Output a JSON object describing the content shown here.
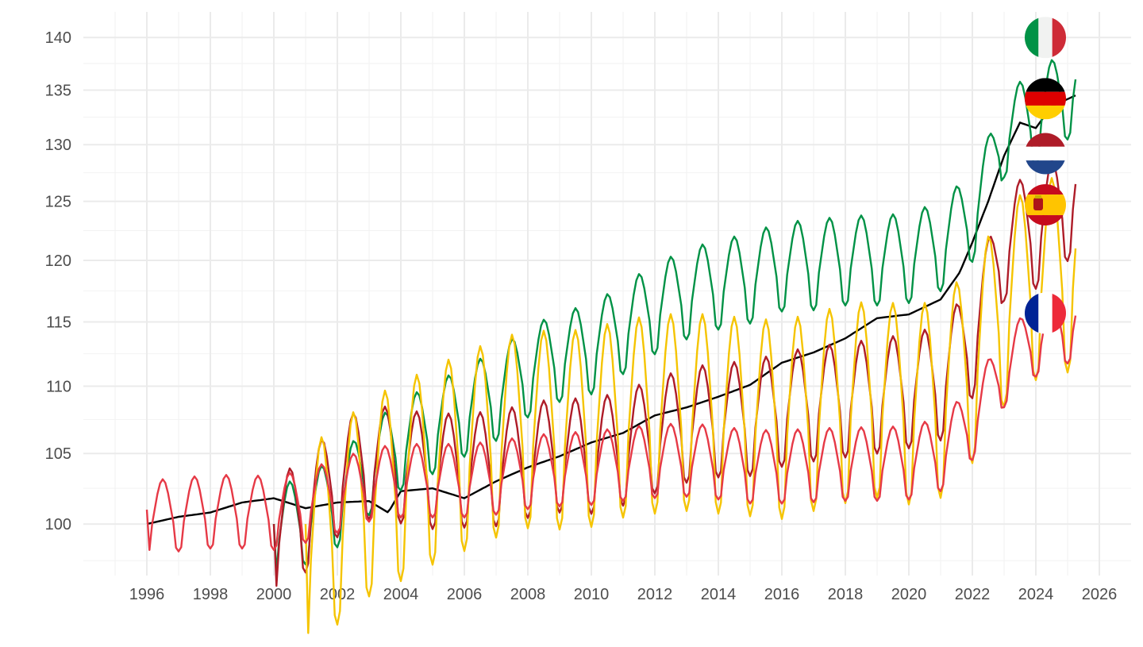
{
  "chart_data": {
    "type": "line",
    "title": "",
    "xlabel": "",
    "ylabel": "",
    "y_scale": "log",
    "ylim": [
      96.5,
      142.5
    ],
    "xlim": [
      1994.0,
      2027.0
    ],
    "grid": true,
    "legend": "none; country flags at series line ends (right)",
    "x_ticks": [
      1996,
      1998,
      2000,
      2002,
      2004,
      2006,
      2008,
      2010,
      2012,
      2014,
      2016,
      2018,
      2020,
      2022,
      2024,
      2026
    ],
    "x_tick_labels": [
      "1996",
      "1998",
      "2000",
      "2002",
      "2004",
      "2006",
      "2008",
      "2010",
      "2012",
      "2014",
      "2016",
      "2018",
      "2020",
      "2022",
      "2024",
      "2026"
    ],
    "y_ticks": [
      100,
      105,
      110,
      115,
      120,
      125,
      130,
      135,
      140
    ],
    "y_tick_labels": [
      "100",
      "105",
      "110",
      "115",
      "120",
      "125",
      "130",
      "135",
      "140"
    ],
    "series": [
      {
        "country": "Germany",
        "color": "#000000",
        "flag": "germany-flag",
        "start": 1996.0,
        "end": 2025.25,
        "seasonal_amp": 0.0,
        "anchors": [
          [
            1996.0,
            100.0
          ],
          [
            1997.0,
            100.5
          ],
          [
            1998.0,
            100.8
          ],
          [
            1999.0,
            101.5
          ],
          [
            2000.0,
            101.8
          ],
          [
            2001.0,
            101.1
          ],
          [
            2002.0,
            101.5
          ],
          [
            2003.0,
            101.6
          ],
          [
            2003.6,
            100.8
          ],
          [
            2004.0,
            102.3
          ],
          [
            2005.0,
            102.5
          ],
          [
            2006.0,
            101.8
          ],
          [
            2007.0,
            103.0
          ],
          [
            2008.0,
            104.0
          ],
          [
            2009.0,
            104.8
          ],
          [
            2010.0,
            105.8
          ],
          [
            2011.0,
            106.5
          ],
          [
            2012.0,
            107.8
          ],
          [
            2013.0,
            108.4
          ],
          [
            2014.0,
            109.2
          ],
          [
            2015.0,
            110.1
          ],
          [
            2016.0,
            111.8
          ],
          [
            2017.0,
            112.6
          ],
          [
            2018.0,
            113.7
          ],
          [
            2019.0,
            115.3
          ],
          [
            2020.0,
            115.6
          ],
          [
            2021.0,
            116.8
          ],
          [
            2021.6,
            119.0
          ],
          [
            2022.0,
            121.5
          ],
          [
            2022.5,
            125.0
          ],
          [
            2023.0,
            129.0
          ],
          [
            2023.5,
            132.0
          ],
          [
            2024.0,
            131.5
          ],
          [
            2024.5,
            133.5
          ],
          [
            2025.25,
            134.5
          ]
        ]
      },
      {
        "country": "Italy",
        "color": "#009246",
        "flag": "italy-flag",
        "start": 2000.0,
        "end": 2025.25,
        "seasonal_amp": 0.055,
        "anchors": [
          [
            2000.0,
            100.0
          ],
          [
            2001.0,
            101.0
          ],
          [
            2002.0,
            102.2
          ],
          [
            2003.0,
            104.5
          ],
          [
            2004.0,
            106.3
          ],
          [
            2005.0,
            107.5
          ],
          [
            2006.0,
            108.8
          ],
          [
            2007.0,
            110.0
          ],
          [
            2008.0,
            111.8
          ],
          [
            2009.0,
            113.0
          ],
          [
            2010.0,
            113.6
          ],
          [
            2011.0,
            115.2
          ],
          [
            2012.0,
            116.8
          ],
          [
            2013.0,
            118.0
          ],
          [
            2014.0,
            118.8
          ],
          [
            2015.0,
            119.3
          ],
          [
            2016.0,
            120.3
          ],
          [
            2017.0,
            120.4
          ],
          [
            2018.0,
            120.8
          ],
          [
            2019.0,
            120.8
          ],
          [
            2020.0,
            121.0
          ],
          [
            2021.0,
            122.0
          ],
          [
            2022.0,
            124.5
          ],
          [
            2022.5,
            127.5
          ],
          [
            2023.0,
            132.0
          ],
          [
            2024.0,
            133.0
          ],
          [
            2024.5,
            134.5
          ],
          [
            2025.25,
            136.0
          ]
        ]
      },
      {
        "country": "Netherlands",
        "color": "#ae1c28",
        "flag": "netherlands-flag",
        "start": 2000.0,
        "end": 2025.25,
        "seasonal_amp": 0.07,
        "anchors": [
          [
            2000.0,
            100.0
          ],
          [
            2001.0,
            101.5
          ],
          [
            2002.0,
            104.0
          ],
          [
            2003.0,
            105.3
          ],
          [
            2004.0,
            105.0
          ],
          [
            2005.0,
            104.6
          ],
          [
            2006.0,
            104.7
          ],
          [
            2007.0,
            104.8
          ],
          [
            2008.0,
            105.4
          ],
          [
            2009.0,
            105.8
          ],
          [
            2010.0,
            105.7
          ],
          [
            2011.0,
            106.3
          ],
          [
            2012.0,
            107.2
          ],
          [
            2013.0,
            108.0
          ],
          [
            2014.0,
            108.4
          ],
          [
            2015.0,
            108.5
          ],
          [
            2016.0,
            109.2
          ],
          [
            2017.0,
            109.6
          ],
          [
            2018.0,
            109.9
          ],
          [
            2019.0,
            110.2
          ],
          [
            2020.0,
            110.6
          ],
          [
            2021.0,
            111.2
          ],
          [
            2022.0,
            114.5
          ],
          [
            2022.5,
            118.0
          ],
          [
            2023.0,
            122.5
          ],
          [
            2024.0,
            123.5
          ],
          [
            2025.25,
            126.5
          ]
        ]
      },
      {
        "country": "Spain",
        "color": "#f5c400",
        "flag": "spain-flag",
        "start": 2001.0,
        "end": 2025.25,
        "seasonal_amp": 0.12,
        "anchors": [
          [
            2001.0,
            100.0
          ],
          [
            2002.0,
            101.5
          ],
          [
            2003.0,
            103.5
          ],
          [
            2004.0,
            104.6
          ],
          [
            2005.0,
            105.8
          ],
          [
            2006.0,
            106.8
          ],
          [
            2007.0,
            107.8
          ],
          [
            2008.0,
            108.5
          ],
          [
            2009.0,
            108.4
          ],
          [
            2010.0,
            108.6
          ],
          [
            2011.0,
            109.3
          ],
          [
            2012.0,
            109.6
          ],
          [
            2013.0,
            109.8
          ],
          [
            2014.0,
            109.6
          ],
          [
            2015.0,
            109.4
          ],
          [
            2016.0,
            109.2
          ],
          [
            2017.0,
            109.8
          ],
          [
            2018.0,
            110.4
          ],
          [
            2019.0,
            110.8
          ],
          [
            2020.0,
            110.3
          ],
          [
            2021.0,
            110.8
          ],
          [
            2022.0,
            113.5
          ],
          [
            2023.0,
            118.0
          ],
          [
            2024.0,
            120.2
          ],
          [
            2025.25,
            121.0
          ]
        ]
      },
      {
        "country": "France",
        "color": "#e63946",
        "flag": "france-flag",
        "start": 1996.0,
        "end": 2025.25,
        "seasonal_amp": 0.045,
        "anchors": [
          [
            1996.0,
            101.0
          ],
          [
            1997.0,
            101.2
          ],
          [
            1998.0,
            101.4
          ],
          [
            1999.0,
            101.4
          ],
          [
            2000.0,
            101.3
          ],
          [
            2001.0,
            101.8
          ],
          [
            2002.0,
            102.5
          ],
          [
            2003.0,
            103.3
          ],
          [
            2004.0,
            103.6
          ],
          [
            2005.0,
            103.6
          ],
          [
            2006.0,
            103.6
          ],
          [
            2007.0,
            103.8
          ],
          [
            2008.0,
            104.2
          ],
          [
            2009.0,
            104.4
          ],
          [
            2010.0,
            104.5
          ],
          [
            2011.0,
            104.8
          ],
          [
            2012.0,
            105.0
          ],
          [
            2013.0,
            105.1
          ],
          [
            2014.0,
            104.9
          ],
          [
            2015.0,
            104.6
          ],
          [
            2016.0,
            104.6
          ],
          [
            2017.0,
            104.7
          ],
          [
            2018.0,
            104.8
          ],
          [
            2019.0,
            104.8
          ],
          [
            2020.0,
            104.9
          ],
          [
            2021.0,
            105.5
          ],
          [
            2022.0,
            107.8
          ],
          [
            2023.0,
            111.8
          ],
          [
            2024.0,
            114.2
          ],
          [
            2025.25,
            115.5
          ]
        ]
      }
    ],
    "flags": [
      {
        "name": "italy-flag",
        "y": 140.0
      },
      {
        "name": "germany-flag",
        "y": 134.2
      },
      {
        "name": "netherlands-flag",
        "y": 129.2
      },
      {
        "name": "spain-flag",
        "y": 124.7
      },
      {
        "name": "france-flag",
        "y": 115.7
      }
    ],
    "flag_x": 2024.3
  }
}
